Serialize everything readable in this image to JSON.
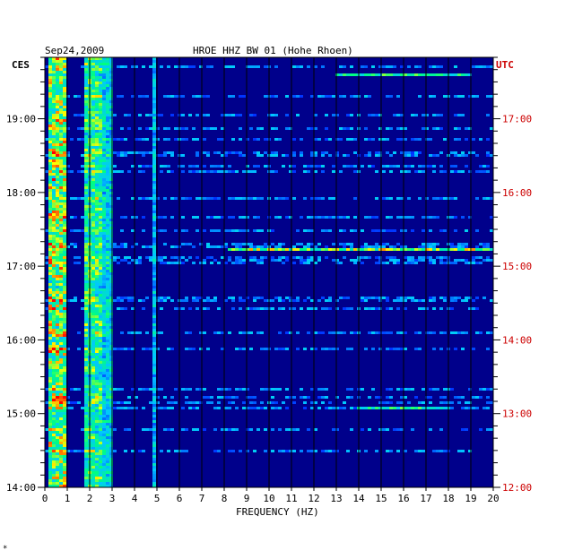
{
  "chart_data": {
    "type": "heatmap",
    "title": "HROE HHZ BW 01 (Hohe Rhoen)",
    "date": "Sep24,2009",
    "xlabel": "FREQUENCY (HZ)",
    "left_axis_label": "CES",
    "right_axis_label": "UTC",
    "xlim": [
      0,
      20
    ],
    "x_ticks": [
      "0",
      "1",
      "2",
      "3",
      "4",
      "5",
      "6",
      "7",
      "8",
      "9",
      "10",
      "11",
      "12",
      "13",
      "14",
      "15",
      "16",
      "17",
      "18",
      "19",
      "20"
    ],
    "left_ticks": [
      "19:00",
      "18:00",
      "17:00",
      "16:00",
      "15:00",
      "14:00"
    ],
    "right_ticks": [
      "17:00",
      "16:00",
      "15:00",
      "14:00",
      "13:00",
      "12:00"
    ],
    "background_color": "#00008b",
    "right_axis_color": "#cc0000",
    "colorscale": [
      "#0000ff",
      "#00c8ff",
      "#00ff80",
      "#ffff00",
      "#ff0000"
    ],
    "time_range_ces": [
      "14:00",
      "19:50"
    ],
    "bands": [
      {
        "freq_hz": [
          0.2,
          1.0
        ],
        "level": 0.85
      },
      {
        "freq_hz": [
          1.8,
          2.5
        ],
        "level": 0.65
      },
      {
        "freq_hz": [
          2.5,
          3.0
        ],
        "level": 0.45
      },
      {
        "freq_hz": [
          4.8,
          5.0
        ],
        "level": 0.35
      }
    ],
    "events": [
      {
        "time_ces": "17:14",
        "freq_hz": [
          8.2,
          20
        ],
        "level": 0.75
      },
      {
        "time_ces": "19:36",
        "freq_hz": [
          13,
          19
        ],
        "level": 0.55
      },
      {
        "time_ces": "15:05",
        "freq_hz": [
          14,
          18
        ],
        "level": 0.55
      }
    ]
  },
  "footer_mark": "*"
}
